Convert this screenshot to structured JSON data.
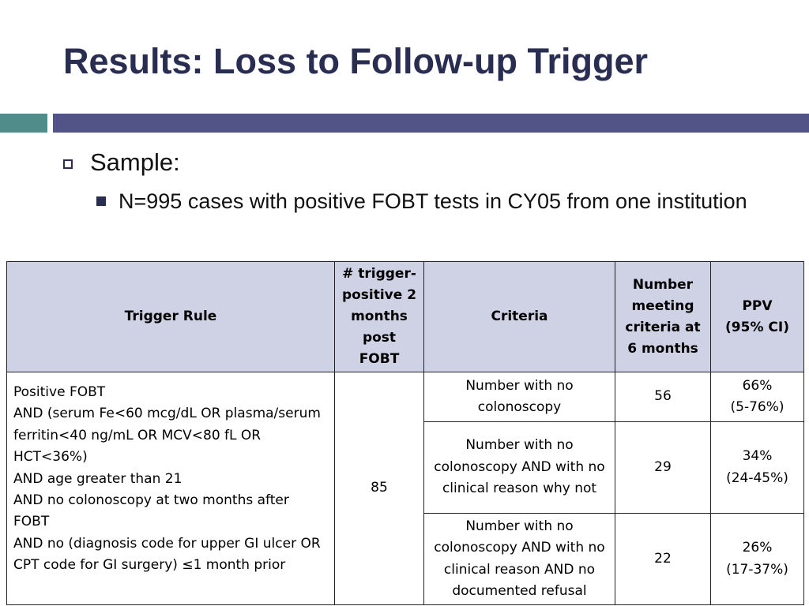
{
  "slide": {
    "title": "Results: Loss to Follow-up Trigger",
    "bullet1": "Sample:",
    "bullet2": "N=995 cases with positive FOBT tests in CY05 from one institution"
  },
  "table": {
    "headers": {
      "rule": "Trigger Rule",
      "trigger_positive": "# trigger-positive 2 months post FOBT",
      "criteria": "Criteria",
      "number_meeting": "Number meeting criteria at 6 months",
      "ppv": "PPV",
      "ppv_ci": "(95% CI)"
    },
    "rule_lines": [
      "Positive FOBT",
      "AND (serum Fe<60 mcg/dL OR plasma/serum ferritin<40 ng/mL OR MCV<80 fL OR HCT<36%)",
      "AND age greater than 21",
      "AND no colonoscopy at two months after FOBT",
      "AND no (diagnosis code for upper GI ulcer OR CPT code for GI surgery) ≤1 month prior"
    ],
    "trigger_positive_count": "85",
    "rows": [
      {
        "criteria": "Number with no colonoscopy",
        "number": "56",
        "ppv": "66%",
        "ci": "(5-76%)"
      },
      {
        "criteria": "Number with no colonoscopy AND with no clinical reason why not",
        "number": "29",
        "ppv": "34%",
        "ci": "(24-45%)"
      },
      {
        "criteria": "Number with no colonoscopy AND with no clinical reason AND no documented refusal",
        "number": "22",
        "ppv": "26%",
        "ci": "(17-37%)"
      }
    ]
  },
  "colors": {
    "title": "#2a2d52",
    "band_teal": "#4f8c8a",
    "band_indigo": "#525488",
    "header_fill": "#cfd2e4"
  }
}
